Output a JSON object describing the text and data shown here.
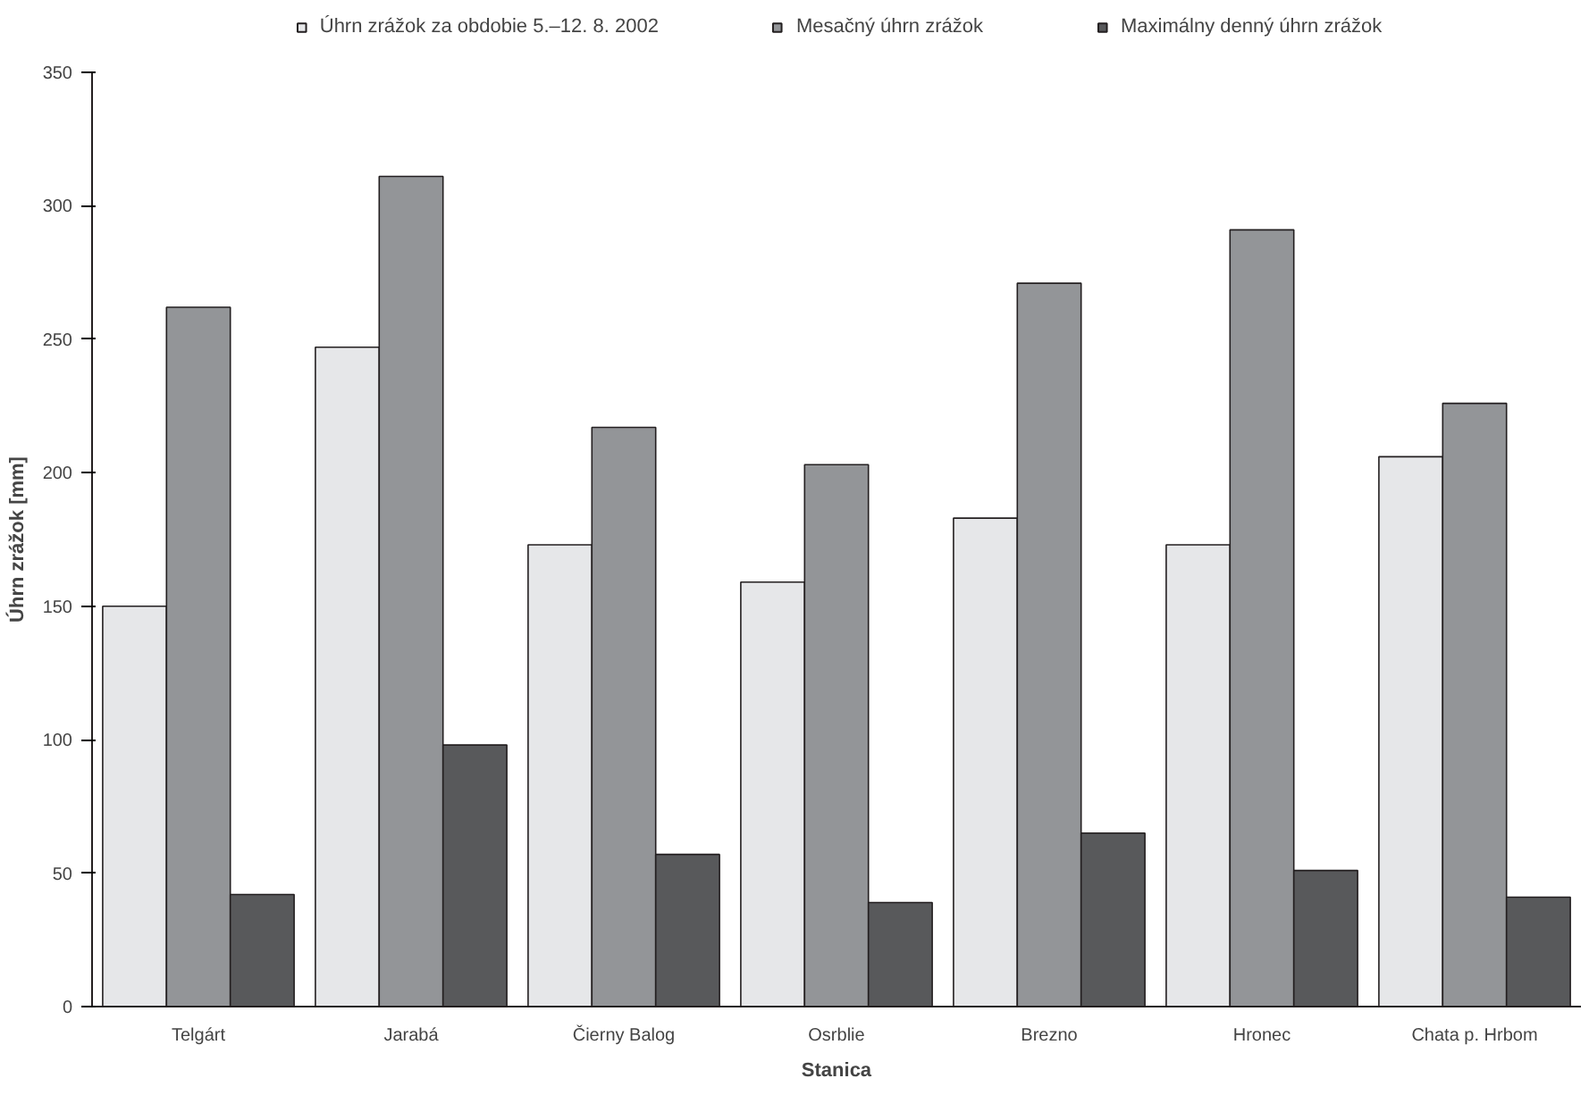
{
  "chart_data": {
    "type": "bar",
    "xlabel": "Stanica",
    "ylabel": "Úhrn zrážok [mm]",
    "categories": [
      "Telgárt",
      "Jarabá",
      "Čierny Balog",
      "Osrblie",
      "Brezno",
      "Hronec",
      "Chata p. Hrbom"
    ],
    "series": [
      {
        "name": "Úhrn zrážok za obdobie 5.–12. 8. 2002",
        "color": "#e6e7e9",
        "values": [
          150,
          247,
          173,
          159,
          183,
          173,
          206
        ]
      },
      {
        "name": "Mesačný úhrn zrážok",
        "color": "#939598",
        "values": [
          262,
          311,
          217,
          203,
          271,
          291,
          226
        ]
      },
      {
        "name": "Maximálny denný úhrn zrážok",
        "color": "#58595b",
        "values": [
          42,
          98,
          57,
          39,
          65,
          51,
          41
        ]
      }
    ],
    "ylim": [
      0,
      350
    ],
    "yticks": [
      0,
      50,
      100,
      150,
      200,
      250,
      300,
      350
    ],
    "grid": false,
    "legend": "top"
  }
}
